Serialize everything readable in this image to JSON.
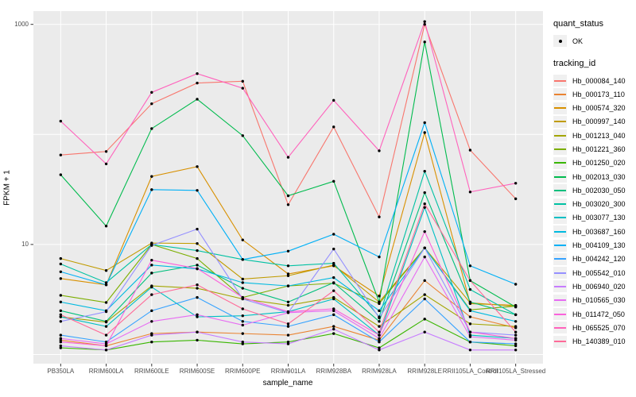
{
  "chart_data": {
    "type": "line",
    "title": "",
    "xlabel": "sample_name",
    "ylabel": "FPKM + 1",
    "y_scale": "log10",
    "y_tick_labels": [
      10,
      1000
    ],
    "y_gridline_values": [
      1,
      10,
      100,
      1000
    ],
    "ylim": [
      0.85,
      1400
    ],
    "grid": "on",
    "panel_background": "#EBEBEB",
    "gridline_color": "#FFFFFF",
    "point_color": "#000000",
    "legend_position": "right",
    "x_categories": [
      "PB350LA",
      "RRIM600LA",
      "RRIM600LE",
      "RRIM600SE",
      "RRIM600PE",
      "RRIM901LA",
      "RRIM928BA",
      "RRIM928LA",
      "RRIM928LE",
      "RRII105LA_Control",
      "RRII105LA_Stressed"
    ],
    "series": [
      {
        "name": "Hb_000084_140",
        "color": "#F8766D",
        "values": [
          65,
          70,
          190,
          293,
          304,
          23,
          117,
          17.8,
          1000,
          72,
          26
        ]
      },
      {
        "name": "Hb_000173_110",
        "color": "#EA8331",
        "values": [
          1.35,
          1.2,
          1.55,
          1.6,
          1.55,
          1.5,
          1.8,
          1.35,
          4.7,
          2.2,
          1.75
        ]
      },
      {
        "name": "Hb_000574_320",
        "color": "#D89000",
        "values": [
          4.9,
          4.3,
          41.5,
          51,
          11,
          5.4,
          6.4,
          3.4,
          104,
          2.9,
          2.8
        ]
      },
      {
        "name": "Hb_000997_140",
        "color": "#C09B00",
        "values": [
          7.45,
          5.8,
          10.3,
          10.2,
          4.85,
          5.2,
          6.5,
          3.0,
          9.3,
          2.95,
          2.75
        ]
      },
      {
        "name": "Hb_001213_040",
        "color": "#A3A500",
        "values": [
          2.2,
          1.97,
          4.2,
          4.0,
          3.2,
          2.8,
          3.3,
          1.8,
          3.5,
          1.9,
          1.8
        ]
      },
      {
        "name": "Hb_001221_360",
        "color": "#7CAE00",
        "values": [
          3.45,
          2.97,
          10.0,
          7.45,
          3.3,
          4.2,
          4.45,
          2.9,
          9.3,
          2.55,
          2.75
        ]
      },
      {
        "name": "Hb_001250_020",
        "color": "#39B600",
        "values": [
          1.15,
          1.1,
          1.3,
          1.35,
          1.25,
          1.3,
          1.55,
          1.15,
          2.1,
          1.3,
          1.2
        ]
      },
      {
        "name": "Hb_002013_030",
        "color": "#00BB4E",
        "values": [
          43,
          14.7,
          113,
          209,
          97.5,
          27.7,
          37.5,
          3.0,
          692,
          4.7,
          2.7
        ]
      },
      {
        "name": "Hb_002030_050",
        "color": "#00BF7D",
        "values": [
          2.5,
          2.0,
          5.5,
          6.5,
          4.0,
          3.0,
          4.5,
          2.0,
          29.6,
          3.0,
          2.3
        ]
      },
      {
        "name": "Hb_003020_300",
        "color": "#00C1A3",
        "values": [
          6.65,
          4.5,
          10.0,
          8.8,
          7.3,
          6.4,
          6.75,
          2.2,
          46.3,
          3.9,
          2.3
        ]
      },
      {
        "name": "Hb_003077_130",
        "color": "#00BFC4",
        "values": [
          2.2,
          1.8,
          4.1,
          2.2,
          2.25,
          2.45,
          3.2,
          1.5,
          21.7,
          1.5,
          1.4
        ]
      },
      {
        "name": "Hb_003687_160",
        "color": "#00BAE0",
        "values": [
          3.0,
          2.5,
          6.5,
          6.0,
          4.5,
          4.2,
          5.0,
          2.5,
          9.3,
          2.5,
          2.0
        ]
      },
      {
        "name": "Hb_004109_130",
        "color": "#00B0F6",
        "values": [
          5.65,
          4.3,
          31.5,
          31,
          7.3,
          8.7,
          12.4,
          7.7,
          128,
          6.4,
          4.35
        ]
      },
      {
        "name": "Hb_004242_120",
        "color": "#35A2FF",
        "values": [
          1.5,
          1.3,
          2.5,
          3.3,
          2.0,
          1.8,
          2.3,
          1.3,
          3.2,
          1.3,
          1.25
        ]
      },
      {
        "name": "Hb_005542_010",
        "color": "#9590FF",
        "values": [
          2.0,
          2.45,
          9.8,
          13.8,
          3.2,
          2.4,
          9.1,
          2.15,
          9.3,
          1.6,
          1.5
        ]
      },
      {
        "name": "Hb_006940_020",
        "color": "#C77CFF",
        "values": [
          1.2,
          1.1,
          1.5,
          1.6,
          1.3,
          1.25,
          1.7,
          1.1,
          1.6,
          1.1,
          1.1
        ]
      },
      {
        "name": "Hb_010565_030",
        "color": "#E76BF3",
        "values": [
          1.4,
          1.25,
          2.0,
          2.3,
          1.85,
          2.4,
          2.5,
          1.4,
          7.7,
          1.45,
          1.35
        ]
      },
      {
        "name": "Hb_011472_050",
        "color": "#FA62DB",
        "values": [
          1.3,
          1.2,
          7.2,
          6.05,
          3.3,
          2.45,
          2.6,
          1.5,
          13.1,
          1.6,
          1.4
        ]
      },
      {
        "name": "Hb_065525_070",
        "color": "#FF62BC",
        "values": [
          132,
          54,
          241,
          357,
          263,
          62,
          204,
          71,
          1060,
          30,
          36
        ]
      },
      {
        "name": "Hb_140389_010",
        "color": "#FF6A98",
        "values": [
          2.3,
          1.5,
          3.5,
          4.3,
          2.6,
          1.9,
          3.8,
          1.6,
          23.4,
          4.7,
          1.6
        ]
      }
    ]
  },
  "legend": {
    "quant_status": {
      "title": "quant_status",
      "items": [
        {
          "label": "OK",
          "marker": "point-icon"
        }
      ]
    },
    "tracking_id": {
      "title": "tracking_id"
    }
  }
}
